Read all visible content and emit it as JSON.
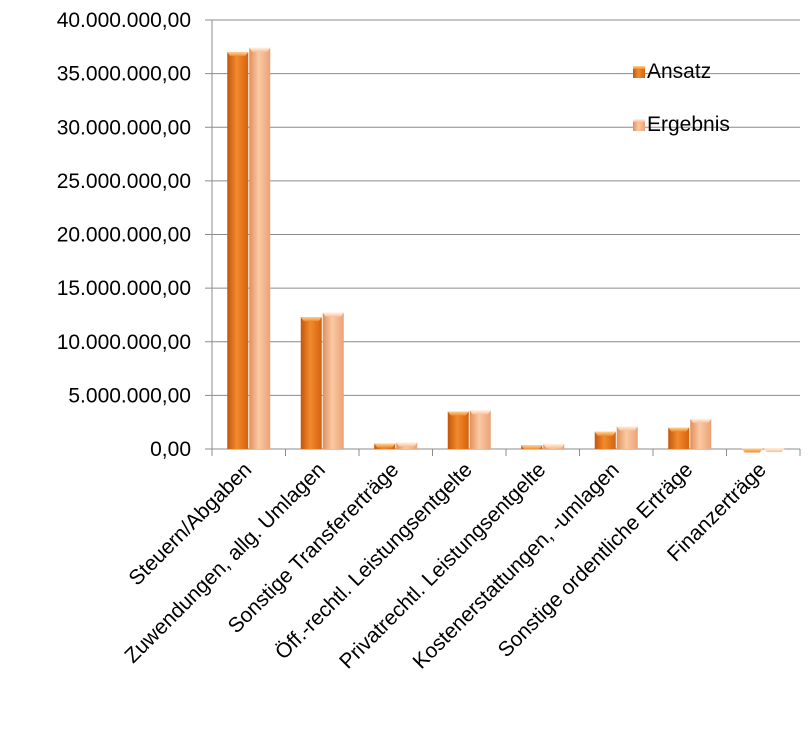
{
  "chart_data": {
    "type": "bar",
    "title": "",
    "xlabel": "",
    "ylabel": "",
    "ylim": [
      0,
      40000000
    ],
    "y_ticks": [
      {
        "value": 0,
        "label": "0,00"
      },
      {
        "value": 5000000,
        "label": "5.000.000,00"
      },
      {
        "value": 10000000,
        "label": "10.000.000,00"
      },
      {
        "value": 15000000,
        "label": "15.000.000,00"
      },
      {
        "value": 20000000,
        "label": "20.000.000,00"
      },
      {
        "value": 25000000,
        "label": "25.000.000,00"
      },
      {
        "value": 30000000,
        "label": "30.000.000,00"
      },
      {
        "value": 35000000,
        "label": "35.000.000,00"
      },
      {
        "value": 40000000,
        "label": "40.000.000,00"
      }
    ],
    "grid": true,
    "legend_position": "top-right",
    "categories": [
      "Steuern/Abgaben",
      "Zuwendungen, allg. Umlagen",
      "Sonstige Transfererträge",
      "Öff.-rechtl. Leistungsentgelte",
      "Privatrechtl. Leistungsentgelte",
      "Kostenerstattungen, -umlagen",
      "Sonstige ordentliche Erträge",
      "Finanzerträge"
    ],
    "series": [
      {
        "name": "Ansatz",
        "color": "#E46C0A",
        "values": [
          37000000,
          12300000,
          500000,
          3500000,
          350000,
          1600000,
          2000000,
          50000
        ]
      },
      {
        "name": "Ergebnis",
        "color": "#F2A77A",
        "values": [
          37400000,
          12700000,
          600000,
          3600000,
          450000,
          2100000,
          2800000,
          80000
        ]
      }
    ]
  }
}
